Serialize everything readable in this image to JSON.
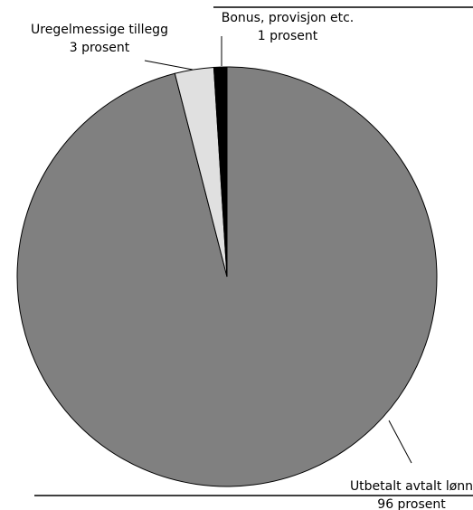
{
  "chart_data": {
    "type": "pie",
    "categories": [
      "Utbetalt avtalt lønn",
      "Uregelmessige tillegg",
      "Bonus, provisjon etc."
    ],
    "values": [
      96,
      3,
      1
    ],
    "value_labels": [
      "96 prosent",
      "3 prosent",
      "1 prosent"
    ],
    "colors": [
      "#808080",
      "#e0e0e0",
      "#000000"
    ]
  }
}
